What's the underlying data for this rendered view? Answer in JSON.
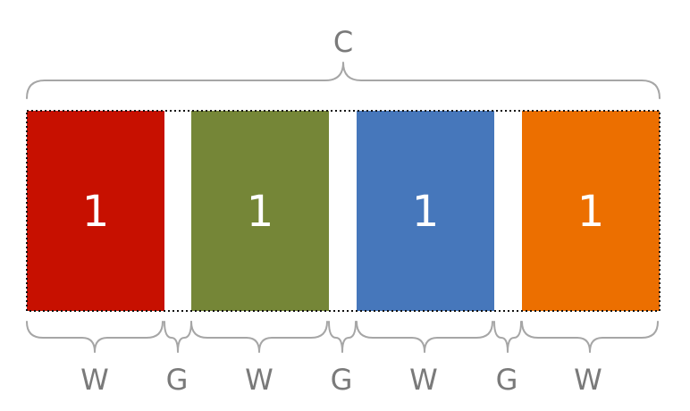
{
  "container": {
    "label": "C"
  },
  "blocks": [
    {
      "value": "1",
      "color": "#c71000"
    },
    {
      "value": "1",
      "color": "#758637"
    },
    {
      "value": "1",
      "color": "#4677bb"
    },
    {
      "value": "1",
      "color": "#ec6f00"
    }
  ],
  "segments": [
    {
      "label": "W"
    },
    {
      "label": "G"
    },
    {
      "label": "W"
    },
    {
      "label": "G"
    },
    {
      "label": "W"
    },
    {
      "label": "G"
    },
    {
      "label": "W"
    }
  ]
}
